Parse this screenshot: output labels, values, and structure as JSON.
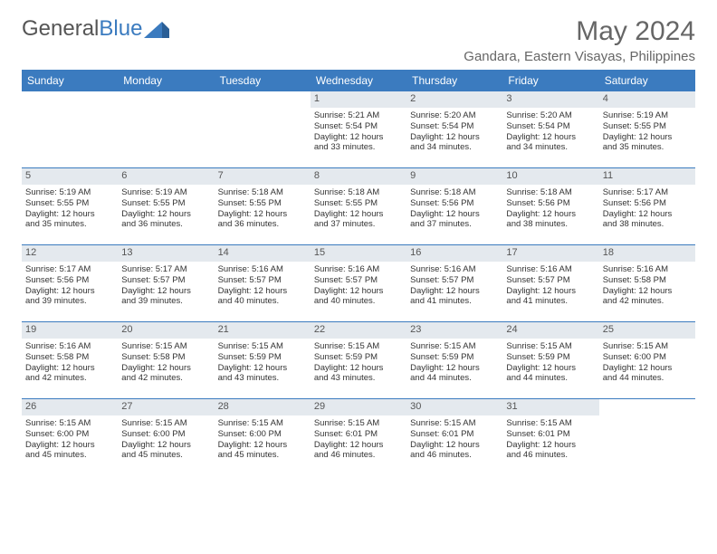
{
  "logo": {
    "text1": "General",
    "text2": "Blue"
  },
  "title": "May 2024",
  "location": "Gandara, Eastern Visayas, Philippines",
  "colors": {
    "header_bg": "#3b7bbf",
    "daynum_bg": "#e4e9ee",
    "text": "#333333",
    "title_color": "#666666"
  },
  "dayNames": [
    "Sunday",
    "Monday",
    "Tuesday",
    "Wednesday",
    "Thursday",
    "Friday",
    "Saturday"
  ],
  "weeks": [
    [
      {
        "empty": true
      },
      {
        "empty": true
      },
      {
        "empty": true
      },
      {
        "day": "1",
        "sunrise": "Sunrise: 5:21 AM",
        "sunset": "Sunset: 5:54 PM",
        "dl1": "Daylight: 12 hours",
        "dl2": "and 33 minutes."
      },
      {
        "day": "2",
        "sunrise": "Sunrise: 5:20 AM",
        "sunset": "Sunset: 5:54 PM",
        "dl1": "Daylight: 12 hours",
        "dl2": "and 34 minutes."
      },
      {
        "day": "3",
        "sunrise": "Sunrise: 5:20 AM",
        "sunset": "Sunset: 5:54 PM",
        "dl1": "Daylight: 12 hours",
        "dl2": "and 34 minutes."
      },
      {
        "day": "4",
        "sunrise": "Sunrise: 5:19 AM",
        "sunset": "Sunset: 5:55 PM",
        "dl1": "Daylight: 12 hours",
        "dl2": "and 35 minutes."
      }
    ],
    [
      {
        "day": "5",
        "sunrise": "Sunrise: 5:19 AM",
        "sunset": "Sunset: 5:55 PM",
        "dl1": "Daylight: 12 hours",
        "dl2": "and 35 minutes."
      },
      {
        "day": "6",
        "sunrise": "Sunrise: 5:19 AM",
        "sunset": "Sunset: 5:55 PM",
        "dl1": "Daylight: 12 hours",
        "dl2": "and 36 minutes."
      },
      {
        "day": "7",
        "sunrise": "Sunrise: 5:18 AM",
        "sunset": "Sunset: 5:55 PM",
        "dl1": "Daylight: 12 hours",
        "dl2": "and 36 minutes."
      },
      {
        "day": "8",
        "sunrise": "Sunrise: 5:18 AM",
        "sunset": "Sunset: 5:55 PM",
        "dl1": "Daylight: 12 hours",
        "dl2": "and 37 minutes."
      },
      {
        "day": "9",
        "sunrise": "Sunrise: 5:18 AM",
        "sunset": "Sunset: 5:56 PM",
        "dl1": "Daylight: 12 hours",
        "dl2": "and 37 minutes."
      },
      {
        "day": "10",
        "sunrise": "Sunrise: 5:18 AM",
        "sunset": "Sunset: 5:56 PM",
        "dl1": "Daylight: 12 hours",
        "dl2": "and 38 minutes."
      },
      {
        "day": "11",
        "sunrise": "Sunrise: 5:17 AM",
        "sunset": "Sunset: 5:56 PM",
        "dl1": "Daylight: 12 hours",
        "dl2": "and 38 minutes."
      }
    ],
    [
      {
        "day": "12",
        "sunrise": "Sunrise: 5:17 AM",
        "sunset": "Sunset: 5:56 PM",
        "dl1": "Daylight: 12 hours",
        "dl2": "and 39 minutes."
      },
      {
        "day": "13",
        "sunrise": "Sunrise: 5:17 AM",
        "sunset": "Sunset: 5:57 PM",
        "dl1": "Daylight: 12 hours",
        "dl2": "and 39 minutes."
      },
      {
        "day": "14",
        "sunrise": "Sunrise: 5:16 AM",
        "sunset": "Sunset: 5:57 PM",
        "dl1": "Daylight: 12 hours",
        "dl2": "and 40 minutes."
      },
      {
        "day": "15",
        "sunrise": "Sunrise: 5:16 AM",
        "sunset": "Sunset: 5:57 PM",
        "dl1": "Daylight: 12 hours",
        "dl2": "and 40 minutes."
      },
      {
        "day": "16",
        "sunrise": "Sunrise: 5:16 AM",
        "sunset": "Sunset: 5:57 PM",
        "dl1": "Daylight: 12 hours",
        "dl2": "and 41 minutes."
      },
      {
        "day": "17",
        "sunrise": "Sunrise: 5:16 AM",
        "sunset": "Sunset: 5:57 PM",
        "dl1": "Daylight: 12 hours",
        "dl2": "and 41 minutes."
      },
      {
        "day": "18",
        "sunrise": "Sunrise: 5:16 AM",
        "sunset": "Sunset: 5:58 PM",
        "dl1": "Daylight: 12 hours",
        "dl2": "and 42 minutes."
      }
    ],
    [
      {
        "day": "19",
        "sunrise": "Sunrise: 5:16 AM",
        "sunset": "Sunset: 5:58 PM",
        "dl1": "Daylight: 12 hours",
        "dl2": "and 42 minutes."
      },
      {
        "day": "20",
        "sunrise": "Sunrise: 5:15 AM",
        "sunset": "Sunset: 5:58 PM",
        "dl1": "Daylight: 12 hours",
        "dl2": "and 42 minutes."
      },
      {
        "day": "21",
        "sunrise": "Sunrise: 5:15 AM",
        "sunset": "Sunset: 5:59 PM",
        "dl1": "Daylight: 12 hours",
        "dl2": "and 43 minutes."
      },
      {
        "day": "22",
        "sunrise": "Sunrise: 5:15 AM",
        "sunset": "Sunset: 5:59 PM",
        "dl1": "Daylight: 12 hours",
        "dl2": "and 43 minutes."
      },
      {
        "day": "23",
        "sunrise": "Sunrise: 5:15 AM",
        "sunset": "Sunset: 5:59 PM",
        "dl1": "Daylight: 12 hours",
        "dl2": "and 44 minutes."
      },
      {
        "day": "24",
        "sunrise": "Sunrise: 5:15 AM",
        "sunset": "Sunset: 5:59 PM",
        "dl1": "Daylight: 12 hours",
        "dl2": "and 44 minutes."
      },
      {
        "day": "25",
        "sunrise": "Sunrise: 5:15 AM",
        "sunset": "Sunset: 6:00 PM",
        "dl1": "Daylight: 12 hours",
        "dl2": "and 44 minutes."
      }
    ],
    [
      {
        "day": "26",
        "sunrise": "Sunrise: 5:15 AM",
        "sunset": "Sunset: 6:00 PM",
        "dl1": "Daylight: 12 hours",
        "dl2": "and 45 minutes."
      },
      {
        "day": "27",
        "sunrise": "Sunrise: 5:15 AM",
        "sunset": "Sunset: 6:00 PM",
        "dl1": "Daylight: 12 hours",
        "dl2": "and 45 minutes."
      },
      {
        "day": "28",
        "sunrise": "Sunrise: 5:15 AM",
        "sunset": "Sunset: 6:00 PM",
        "dl1": "Daylight: 12 hours",
        "dl2": "and 45 minutes."
      },
      {
        "day": "29",
        "sunrise": "Sunrise: 5:15 AM",
        "sunset": "Sunset: 6:01 PM",
        "dl1": "Daylight: 12 hours",
        "dl2": "and 46 minutes."
      },
      {
        "day": "30",
        "sunrise": "Sunrise: 5:15 AM",
        "sunset": "Sunset: 6:01 PM",
        "dl1": "Daylight: 12 hours",
        "dl2": "and 46 minutes."
      },
      {
        "day": "31",
        "sunrise": "Sunrise: 5:15 AM",
        "sunset": "Sunset: 6:01 PM",
        "dl1": "Daylight: 12 hours",
        "dl2": "and 46 minutes."
      },
      {
        "empty": true
      }
    ]
  ]
}
